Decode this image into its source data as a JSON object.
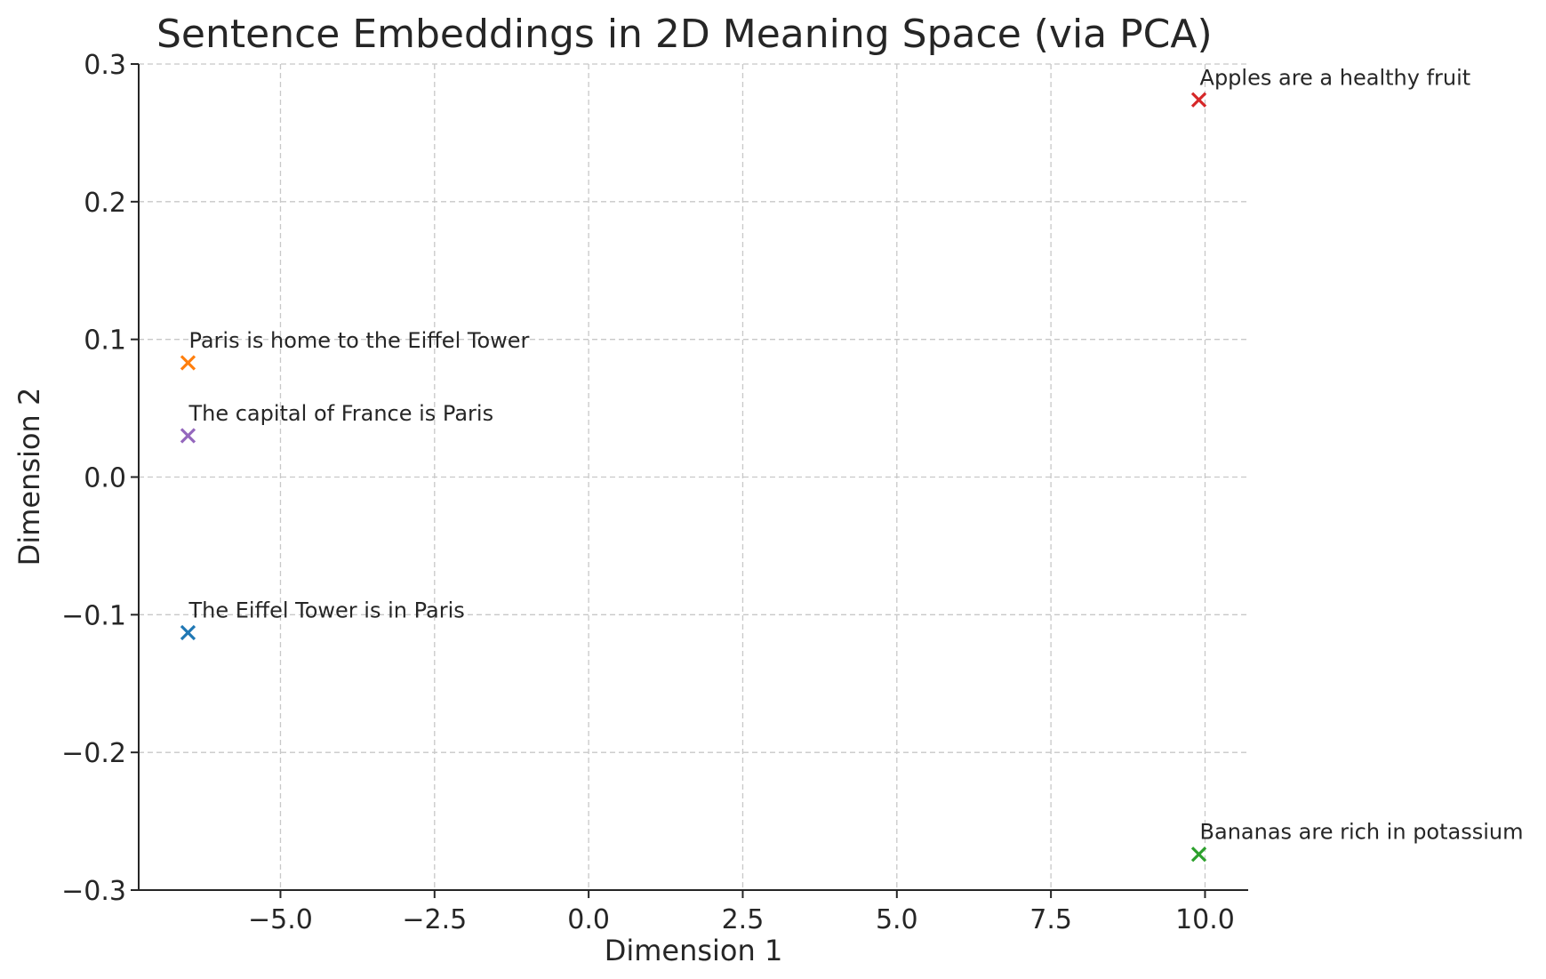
{
  "chart_data": {
    "type": "scatter",
    "title": "Sentence Embeddings in 2D Meaning Space (via PCA)",
    "xlabel": "Dimension 1",
    "ylabel": "Dimension 2",
    "xlim": [
      -7.3,
      10.7
    ],
    "ylim": [
      -0.3,
      0.3
    ],
    "xticks": [
      -5.0,
      -2.5,
      0.0,
      2.5,
      5.0,
      7.5,
      10.0
    ],
    "xtick_labels": [
      "−5.0",
      "−2.5",
      "0.0",
      "2.5",
      "5.0",
      "7.5",
      "10.0"
    ],
    "yticks": [
      -0.3,
      -0.2,
      -0.1,
      0.0,
      0.1,
      0.2,
      0.3
    ],
    "ytick_labels": [
      "−0.3",
      "−0.2",
      "−0.1",
      "0.0",
      "0.1",
      "0.2",
      "0.3"
    ],
    "grid": true,
    "marker": "x",
    "points": [
      {
        "label": "The Eiffel Tower is in Paris",
        "x": -6.5,
        "y": -0.113,
        "color": "#1f77b4"
      },
      {
        "label": "Paris is home to the Eiffel Tower",
        "x": -6.5,
        "y": 0.083,
        "color": "#ff7f0e"
      },
      {
        "label": "Bananas are rich in potassium",
        "x": 9.9,
        "y": -0.274,
        "color": "#2ca02c"
      },
      {
        "label": "Apples are a healthy fruit",
        "x": 9.9,
        "y": 0.274,
        "color": "#d62728"
      },
      {
        "label": "The capital of France is Paris",
        "x": -6.5,
        "y": 0.03,
        "color": "#9467bd"
      }
    ]
  }
}
